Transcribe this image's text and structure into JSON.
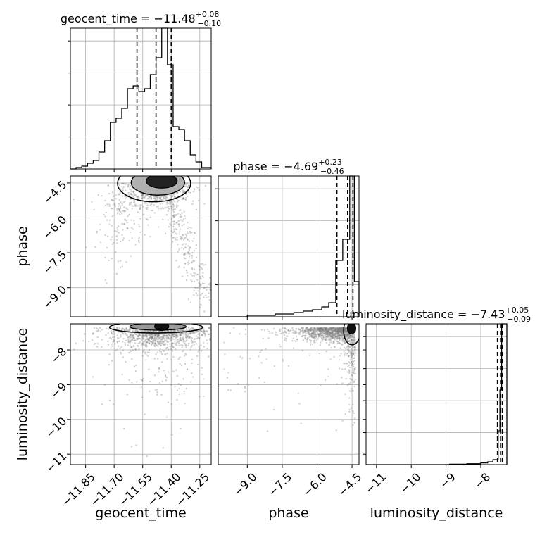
{
  "chart_data": {
    "type": "corner",
    "parameters": [
      "geocent_time",
      "phase",
      "luminosity_distance"
    ],
    "axes": {
      "geocent_time": {
        "label": "geocent_time",
        "range": [
          -11.93,
          -11.19
        ],
        "ticks": [
          -11.85,
          -11.7,
          -11.55,
          -11.4,
          -11.25
        ],
        "tick_labels": [
          "−11.85",
          "−11.70",
          "−11.55",
          "−11.40",
          "−11.25"
        ]
      },
      "phase": {
        "label": "phase",
        "range": [
          -10.25,
          -4.2
        ],
        "ticks": [
          -9.0,
          -7.5,
          -6.0,
          -4.5
        ],
        "tick_labels": [
          "−9.0",
          "−7.5",
          "−6.0",
          "−4.5"
        ]
      },
      "luminosity_distance": {
        "label": "luminosity_distance",
        "range": [
          -11.3,
          -7.25
        ],
        "ticks": [
          -11,
          -10,
          -9,
          -8
        ],
        "tick_labels": [
          "−11",
          "−10",
          "−9",
          "−8"
        ]
      }
    },
    "marginals": [
      {
        "param": "geocent_time",
        "title": {
          "main": "geocent_time = −11.48",
          "sup": "+0.08",
          "sub": "−0.10"
        },
        "quantiles": [
          -11.58,
          -11.48,
          -11.4
        ],
        "bin_edges": [
          -11.93,
          -11.9,
          -11.87,
          -11.84,
          -11.81,
          -11.78,
          -11.75,
          -11.72,
          -11.69,
          -11.66,
          -11.63,
          -11.6,
          -11.57,
          -11.54,
          -11.51,
          -11.48,
          -11.45,
          -11.42,
          -11.39,
          -11.36,
          -11.33,
          -11.3,
          -11.27,
          -11.24,
          -11.21,
          -11.19
        ],
        "counts": [
          0,
          1,
          2,
          4,
          6,
          12,
          20,
          33,
          36,
          43,
          57,
          59,
          55,
          57,
          67,
          79,
          100,
          74,
          30,
          28,
          20,
          10,
          5,
          1,
          1
        ]
      },
      {
        "param": "phase",
        "title": {
          "main": "phase = −4.69",
          "sup": "+0.23",
          "sub": "−0.46"
        },
        "quantiles": [
          -5.15,
          -4.69,
          -4.46
        ],
        "bin_edges": [
          -10.25,
          -9.0,
          -8.6,
          -8.2,
          -7.8,
          -7.4,
          -7.0,
          -6.6,
          -6.2,
          -5.8,
          -5.5,
          -5.2,
          -4.9,
          -4.6,
          -4.4,
          -4.2
        ],
        "counts": [
          0,
          1,
          1,
          1,
          2,
          2,
          3,
          4,
          5,
          7,
          10,
          40,
          55,
          100,
          25
        ]
      },
      {
        "param": "luminosity_distance",
        "title": {
          "main": "luminosity_distance = −7.43",
          "sup": "+0.05",
          "sub": "−0.09"
        },
        "quantiles": [
          -7.52,
          -7.43,
          -7.38
        ],
        "bin_edges": [
          -11.3,
          -8.9,
          -8.4,
          -8.0,
          -7.8,
          -7.65,
          -7.5,
          -7.45,
          -7.4,
          -7.35,
          -7.3,
          -7.25
        ],
        "counts": [
          0,
          0.3,
          0.6,
          1.2,
          2,
          3.5,
          24,
          53,
          100,
          100,
          100
        ]
      }
    ]
  }
}
